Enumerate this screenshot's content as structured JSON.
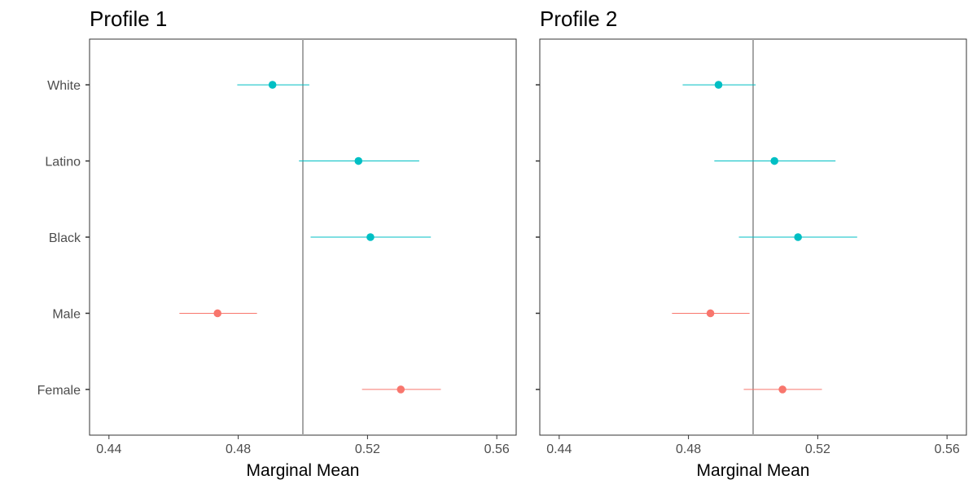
{
  "chart_data": [
    {
      "type": "scatter",
      "title": "Profile 1",
      "xlabel": "Marginal Mean",
      "ylabel": "",
      "xlim": [
        0.434,
        0.566
      ],
      "xticks": [
        0.44,
        0.48,
        0.52,
        0.56
      ],
      "xtick_labels": [
        "0.44",
        "0.48",
        "0.52",
        "0.56"
      ],
      "reference_line": 0.5,
      "categories": [
        "White",
        "Latino",
        "Black",
        "Male",
        "Female"
      ],
      "points": [
        {
          "label": "White",
          "estimate": 0.4906,
          "lower": 0.4797,
          "upper": 0.502,
          "color": "#00BFC4"
        },
        {
          "label": "Latino",
          "estimate": 0.5172,
          "lower": 0.4988,
          "upper": 0.536,
          "color": "#00BFC4"
        },
        {
          "label": "Black",
          "estimate": 0.5209,
          "lower": 0.5024,
          "upper": 0.5396,
          "color": "#00BFC4"
        },
        {
          "label": "Male",
          "estimate": 0.4736,
          "lower": 0.4618,
          "upper": 0.4858,
          "color": "#F8766D"
        },
        {
          "label": "Female",
          "estimate": 0.5303,
          "lower": 0.5183,
          "upper": 0.5427,
          "color": "#F8766D"
        }
      ],
      "grid": false,
      "show_y_labels": true
    },
    {
      "type": "scatter",
      "title": "Profile 2",
      "xlabel": "Marginal Mean",
      "ylabel": "",
      "xlim": [
        0.434,
        0.566
      ],
      "xticks": [
        0.44,
        0.48,
        0.52,
        0.56
      ],
      "xtick_labels": [
        "0.44",
        "0.48",
        "0.52",
        "0.56"
      ],
      "reference_line": 0.5,
      "categories": [
        "White",
        "Latino",
        "Black",
        "Male",
        "Female"
      ],
      "points": [
        {
          "label": "White",
          "estimate": 0.4893,
          "lower": 0.4782,
          "upper": 0.5008,
          "color": "#00BFC4"
        },
        {
          "label": "Latino",
          "estimate": 0.5066,
          "lower": 0.488,
          "upper": 0.5255,
          "color": "#00BFC4"
        },
        {
          "label": "Black",
          "estimate": 0.5139,
          "lower": 0.4956,
          "upper": 0.5322,
          "color": "#00BFC4"
        },
        {
          "label": "Male",
          "estimate": 0.4868,
          "lower": 0.4749,
          "upper": 0.4989,
          "color": "#F8766D"
        },
        {
          "label": "Female",
          "estimate": 0.5091,
          "lower": 0.4971,
          "upper": 0.5213,
          "color": "#F8766D"
        }
      ],
      "grid": false,
      "show_y_labels": false
    }
  ],
  "colors": {
    "teal": "#00BFC4",
    "salmon": "#F8766D",
    "reference_line": "#a6a6a6",
    "panel_border": "#333333",
    "axis_text": "#4d4d4d"
  }
}
